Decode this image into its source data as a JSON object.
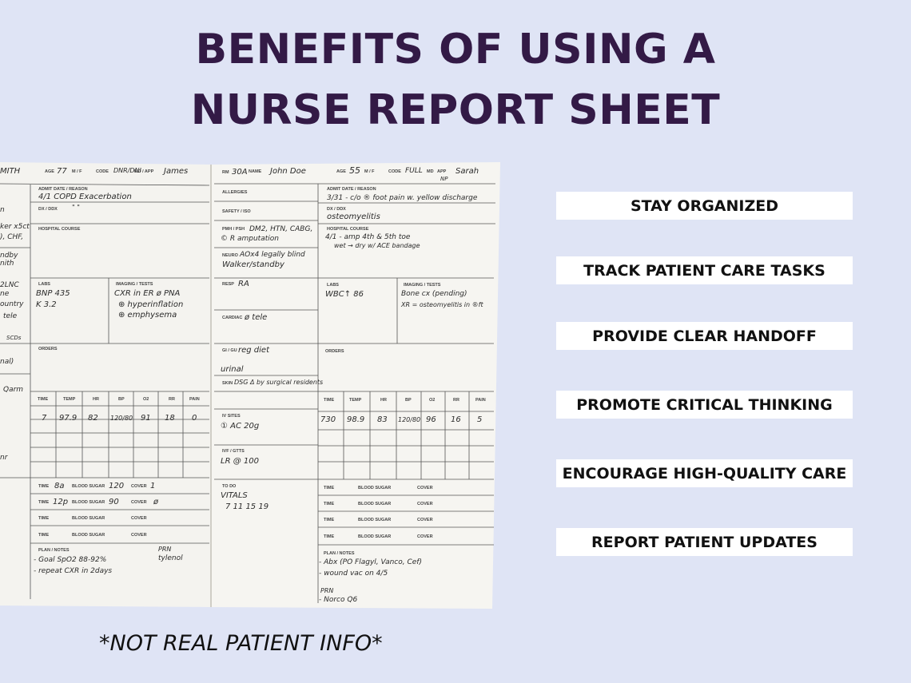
{
  "title": {
    "line1": "BENEFITS OF USING A",
    "line2": "NURSE REPORT SHEET"
  },
  "benefits": [
    "STAY ORGANIZED",
    "TRACK PATIENT CARE TASKS",
    "PROVIDE CLEAR HANDOFF",
    "PROMOTE CRITICAL THINKING",
    "ENCOURAGE HIGH-QUALITY CARE",
    "REPORT PATIENT UPDATES"
  ],
  "disclaimer": "*NOT REAL PATIENT INFO*",
  "sheet": {
    "left_page": {
      "header": {
        "name": "MITH",
        "age_label": "AGE",
        "age": "77",
        "sex_label": "M / F",
        "code_label": "CODE",
        "code": "DNR/DNI",
        "md_label": "MD / APP",
        "md": "James"
      },
      "admit_label": "ADMIT DATE / REASON",
      "admit": "4/1 COPD Exacerbation",
      "dx_label": "DX / DDX",
      "dx": "\"     \"",
      "hospital_course_label": "HOSPITAL COURSE",
      "margin_notes": [
        "n",
        "ker x5ct",
        "), CHF,",
        "ndby",
        "nith",
        "2LNC",
        "ne",
        "ountry",
        "tele",
        "SCDs",
        "nal)",
        "Qarm",
        "nr"
      ],
      "labs_label": "LABS",
      "labs": [
        "BNP 435",
        "K 3.2"
      ],
      "imaging_label": "IMAGING / TESTS",
      "imaging": [
        "CXR in ER ø PNA",
        "⊕ hyperinflation",
        "⊕ emphysema"
      ],
      "orders_label": "ORDERS",
      "vitals_headers": [
        "TIME",
        "TEMP",
        "HR",
        "BP",
        "O2",
        "RR",
        "PAIN"
      ],
      "vitals": [
        "7",
        "97.9",
        "82",
        "120/80",
        "91",
        "18",
        "0"
      ],
      "sugar_rows": [
        {
          "time_label": "TIME",
          "time": "8a",
          "bs_label": "BLOOD SUGAR",
          "bs": "120",
          "cover_label": "COVER",
          "cover": "1"
        },
        {
          "time_label": "TIME",
          "time": "12p",
          "bs_label": "BLOOD SUGAR",
          "bs": "90",
          "cover_label": "COVER",
          "cover": "ø"
        },
        {
          "time_label": "TIME",
          "time": "",
          "bs_label": "BLOOD SUGAR",
          "bs": "",
          "cover_label": "COVER",
          "cover": ""
        },
        {
          "time_label": "TIME",
          "time": "",
          "bs_label": "BLOOD SUGAR",
          "bs": "",
          "cover_label": "COVER",
          "cover": ""
        }
      ],
      "plan_label": "PLAN / NOTES",
      "plan": [
        "- Goal SpO2 88-92%",
        "- repeat CXR in 2days"
      ],
      "prn": [
        "PRN",
        "tylenol"
      ]
    },
    "right_page": {
      "header": {
        "rm_label": "RM",
        "rm": "30A",
        "name_label": "NAME",
        "name": "John Doe",
        "age_label": "AGE",
        "age": "55",
        "sex_label": "M / F",
        "code_label": "CODE",
        "code": "FULL",
        "md_label": "MD",
        "app_label": "APP",
        "np": "NP",
        "md": "Sarah"
      },
      "allergies_label": "ALLERGIES",
      "safety_label": "SAFETY / ISO",
      "pmh_label": "PMH / PSH",
      "pmh": [
        "DM2, HTN, CABG,",
        "© R amputation"
      ],
      "neuro_label": "NEURO",
      "neuro": [
        "AOx4  legally blind",
        "Walker/standby"
      ],
      "resp_label": "RESP",
      "resp": "RA",
      "cardiac_label": "CARDIAC",
      "cardiac": "ø tele",
      "gigu_label": "GI / GU",
      "gigu": [
        "reg diet",
        "urinal"
      ],
      "skin_label": "SKIN",
      "skin": "DSG Δ by surgical residents",
      "ivsites_label": "IV SITES",
      "ivsites": "① AC 20g",
      "ivf_label": "IVF / GTTS",
      "ivf": "LR @ 100",
      "todo_label": "TO DO",
      "todo": [
        "VITALS",
        "7   11   15   19"
      ],
      "admit_label": "ADMIT DATE / REASON",
      "admit": "3/31 - c/o ® foot pain w. yellow discharge",
      "dx_label": "DX / DDX",
      "dx": "osteomyelitis",
      "hospital_course_label": "HOSPITAL COURSE",
      "hospital_course": [
        "4/1 - amp 4th & 5th toe",
        "wet → dry w/ ACE bandage"
      ],
      "labs_label": "LABS",
      "labs": "WBC↑ 86",
      "imaging_label": "IMAGING / TESTS",
      "imaging": [
        "Bone cx (pending)",
        "XR = osteomyelitis in ®ft"
      ],
      "orders_label": "ORDERS",
      "vitals_headers": [
        "TIME",
        "TEMP",
        "HR",
        "BP",
        "O2",
        "RR",
        "PAIN"
      ],
      "vitals": [
        "730",
        "98.9",
        "83",
        "120/80",
        "96",
        "16",
        "5"
      ],
      "sugar_rows": [
        {
          "time_label": "TIME",
          "bs_label": "BLOOD SUGAR",
          "cover_label": "COVER"
        },
        {
          "time_label": "TIME",
          "bs_label": "BLOOD SUGAR",
          "cover_label": "COVER"
        },
        {
          "time_label": "TIME",
          "bs_label": "BLOOD SUGAR",
          "cover_label": "COVER"
        },
        {
          "time_label": "TIME",
          "bs_label": "BLOOD SUGAR",
          "cover_label": "COVER"
        }
      ],
      "plan_label": "PLAN / NOTES",
      "plan": [
        "- Abx (PO Flagyl, Vanco, Cef)",
        "- wound vac on 4/5"
      ],
      "prn": [
        "PRN",
        "- Norco Q6"
      ]
    }
  }
}
